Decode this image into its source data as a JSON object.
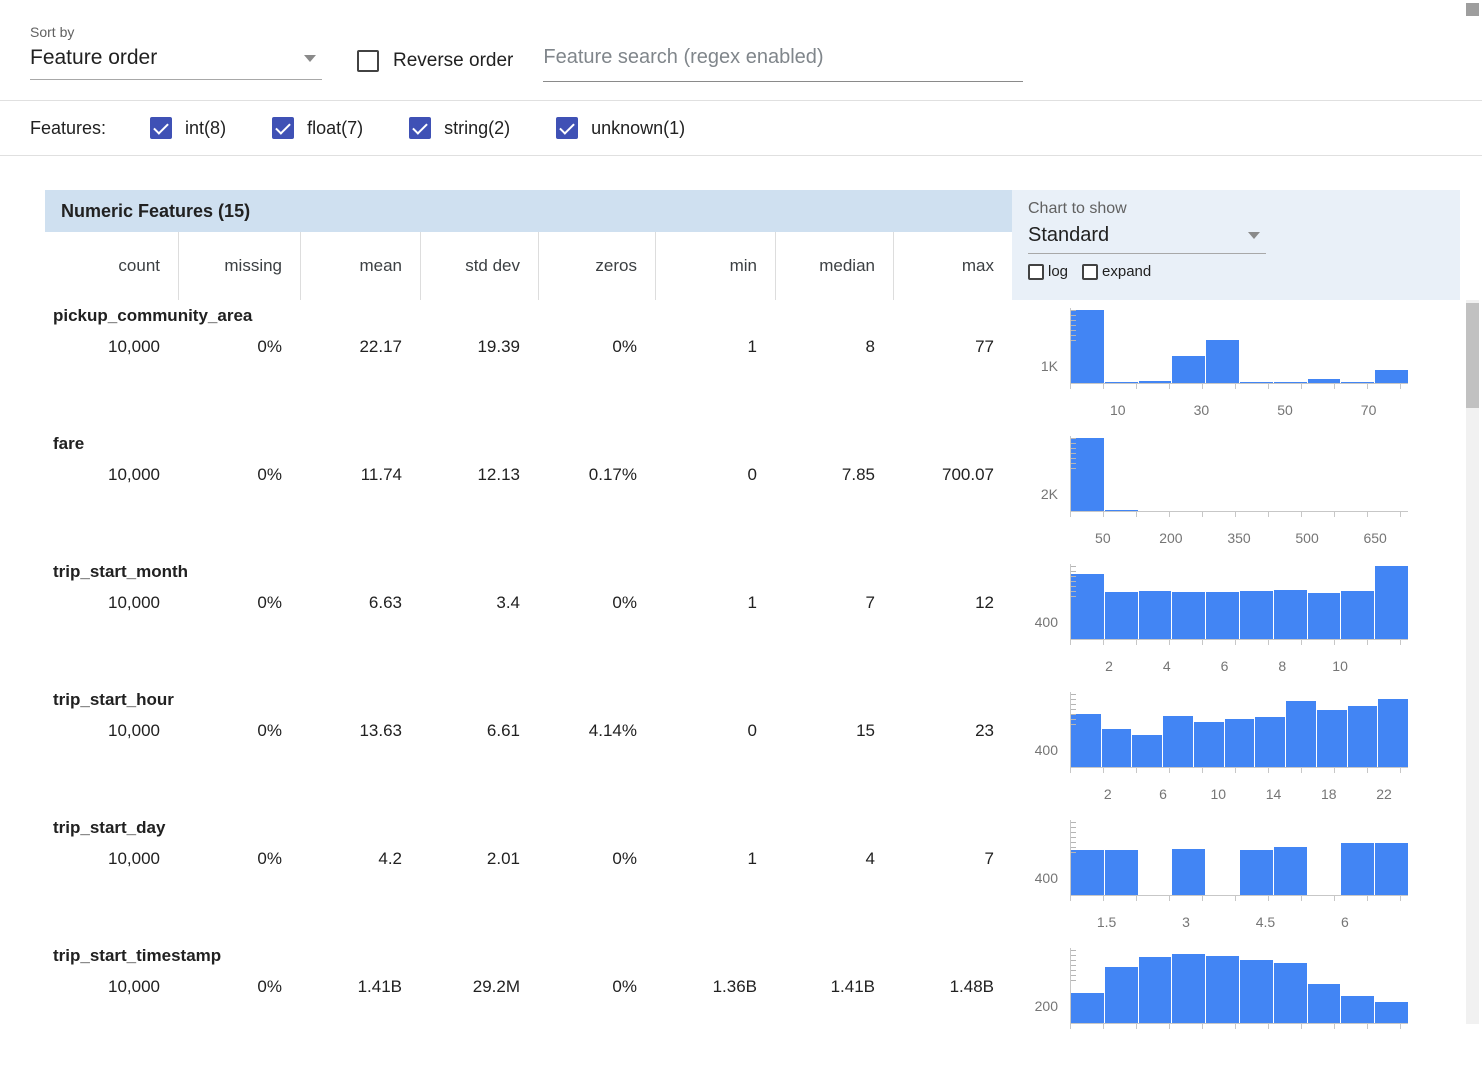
{
  "colors": {
    "accent": "#3f51b5",
    "bar": "#4285f4",
    "band": "#cfe0f0",
    "panel": "#e9f0f8",
    "hist_axis": "#c7c7c7"
  },
  "toolbar": {
    "sort_by_label": "Sort by",
    "sort_value": "Feature order",
    "reverse_label": "Reverse order",
    "search_placeholder": "Feature search (regex enabled)"
  },
  "features_filter": {
    "label": "Features:",
    "items": [
      {
        "label": "int(8)",
        "checked": true
      },
      {
        "label": "float(7)",
        "checked": true
      },
      {
        "label": "string(2)",
        "checked": true
      },
      {
        "label": "unknown(1)",
        "checked": true
      }
    ]
  },
  "table": {
    "title": "Numeric Features (15)",
    "columns": [
      "count",
      "missing",
      "mean",
      "std dev",
      "zeros",
      "min",
      "median",
      "max"
    ],
    "chart_controls": {
      "label": "Chart to show",
      "selected": "Standard",
      "log_label": "log",
      "expand_label": "expand",
      "log_checked": false,
      "expand_checked": false
    },
    "rows": [
      {
        "name": "pickup_community_area",
        "stats": [
          "10,000",
          "0%",
          "22.17",
          "19.39",
          "0%",
          "1",
          "8",
          "77"
        ],
        "chart": {
          "type": "histogram",
          "y_label": "1K",
          "y_max": 1060,
          "x_min": 1,
          "x_max": 77,
          "x_ticks": [
            "10",
            "30",
            "50",
            "70"
          ],
          "values": [
            1050,
            20,
            30,
            390,
            620,
            15,
            10,
            55,
            15,
            190
          ]
        }
      },
      {
        "name": "fare",
        "stats": [
          "10,000",
          "0%",
          "11.74",
          "12.13",
          "0.17%",
          "0",
          "7.85",
          "700.07"
        ],
        "chart": {
          "type": "histogram",
          "y_label": "2K",
          "y_max": 2320,
          "x_min": 0,
          "x_max": 700,
          "x_ticks": [
            "50",
            "200",
            "350",
            "500",
            "650"
          ],
          "values": [
            2300,
            40,
            12,
            8,
            5,
            4,
            3,
            2,
            2,
            2
          ]
        }
      },
      {
        "name": "trip_start_month",
        "stats": [
          "10,000",
          "0%",
          "6.63",
          "3.4",
          "0%",
          "1",
          "7",
          "12"
        ],
        "chart": {
          "type": "histogram",
          "y_label": "400",
          "y_max": 710,
          "x_min": 1,
          "x_max": 12,
          "x_ticks": [
            "2",
            "4",
            "6",
            "8",
            "10"
          ],
          "values": [
            620,
            450,
            460,
            455,
            450,
            458,
            468,
            445,
            462,
            700
          ]
        }
      },
      {
        "name": "trip_start_hour",
        "stats": [
          "10,000",
          "0%",
          "13.63",
          "6.61",
          "4.14%",
          "0",
          "15",
          "23"
        ],
        "chart": {
          "type": "histogram",
          "y_label": "400",
          "y_max": 700,
          "x_min": 0,
          "x_max": 23,
          "x_ticks": [
            "2",
            "6",
            "10",
            "14",
            "18",
            "22"
          ],
          "values": [
            500,
            355,
            300,
            480,
            430,
            455,
            470,
            620,
            540,
            575,
            645
          ]
        }
      },
      {
        "name": "trip_start_day",
        "stats": [
          "10,000",
          "0%",
          "4.2",
          "2.01",
          "0%",
          "1",
          "4",
          "7"
        ],
        "chart": {
          "type": "histogram",
          "y_label": "400",
          "y_max": 800,
          "x_min": 1,
          "x_max": 7,
          "x_ticks": [
            "1.5",
            "3",
            "4.5",
            "6"
          ],
          "values": [
            490,
            490,
            0,
            500,
            0,
            485,
            515,
            0,
            565,
            565
          ]
        }
      },
      {
        "name": "trip_start_timestamp",
        "stats": [
          "10,000",
          "0%",
          "1.41B",
          "29.2M",
          "0%",
          "1.36B",
          "1.41B",
          "1.48B"
        ],
        "chart": {
          "type": "histogram",
          "y_label": "200",
          "y_max": 320,
          "x_min": 0,
          "x_max": 1,
          "x_ticks": [],
          "values": [
            130,
            240,
            285,
            300,
            290,
            272,
            258,
            168,
            118,
            90
          ]
        }
      }
    ]
  }
}
